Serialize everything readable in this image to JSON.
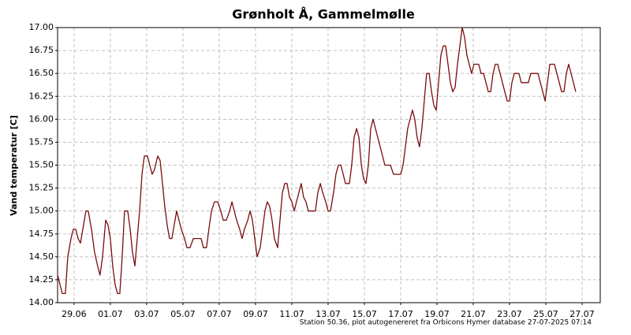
{
  "chart_data": {
    "type": "line",
    "title": "Grønholt Å, Gammelmølle",
    "ylabel": "Vand temperatur [C]",
    "footnote": "Station 50.36, plot autogenereret fra Orbicons Hymer database 27-07-2025 07:14",
    "color": "#7a0c0c",
    "grid": true,
    "xlim": [
      0.09,
      30
    ],
    "ylim": [
      14,
      17
    ],
    "xticks": [
      {
        "value": 1,
        "label": "29.06"
      },
      {
        "value": 3,
        "label": "01.07"
      },
      {
        "value": 5,
        "label": "03.07"
      },
      {
        "value": 7,
        "label": "05.07"
      },
      {
        "value": 9,
        "label": "07.07"
      },
      {
        "value": 11,
        "label": "09.07"
      },
      {
        "value": 13,
        "label": "11.07"
      },
      {
        "value": 15,
        "label": "13.07"
      },
      {
        "value": 17,
        "label": "15.07"
      },
      {
        "value": 19,
        "label": "17.07"
      },
      {
        "value": 21,
        "label": "19.07"
      },
      {
        "value": 23,
        "label": "21.07"
      },
      {
        "value": 25,
        "label": "23.07"
      },
      {
        "value": 27,
        "label": "25.07"
      },
      {
        "value": 29,
        "label": "27.07"
      }
    ],
    "yticks": [
      {
        "value": 14,
        "label": "14.00"
      },
      14.25,
      {
        "value": 14.5,
        "label": "14.50"
      },
      14.75,
      {
        "value": 15,
        "label": "15.00"
      },
      15.25,
      {
        "value": 15.5,
        "label": "15.50"
      },
      15.75,
      {
        "value": 16,
        "label": "16.00"
      },
      16.25,
      {
        "value": 16.5,
        "label": "16.50"
      },
      16.75,
      {
        "value": 17,
        "label": "17.00"
      }
    ],
    "x": [
      0.09,
      0.22,
      0.35,
      0.52,
      0.65,
      0.83,
      0.96,
      1.09,
      1.22,
      1.35,
      1.48,
      1.65,
      1.78,
      1.96,
      2.13,
      2.3,
      2.43,
      2.57,
      2.74,
      2.87,
      3.0,
      3.13,
      3.26,
      3.39,
      3.52,
      3.65,
      3.78,
      3.96,
      4.09,
      4.22,
      4.35,
      4.48,
      4.61,
      4.74,
      4.87,
      5.04,
      5.17,
      5.3,
      5.43,
      5.61,
      5.74,
      5.87,
      6.0,
      6.13,
      6.26,
      6.39,
      6.52,
      6.65,
      6.78,
      6.91,
      7.09,
      7.22,
      7.39,
      7.57,
      7.78,
      8.0,
      8.13,
      8.3,
      8.43,
      8.57,
      8.74,
      8.91,
      9.09,
      9.22,
      9.39,
      9.57,
      9.7,
      9.83,
      9.96,
      10.13,
      10.26,
      10.39,
      10.57,
      10.7,
      10.83,
      10.96,
      11.09,
      11.26,
      11.39,
      11.52,
      11.65,
      11.78,
      11.91,
      12.04,
      12.22,
      12.35,
      12.48,
      12.61,
      12.74,
      12.87,
      13.0,
      13.13,
      13.26,
      13.39,
      13.52,
      13.65,
      13.78,
      13.91,
      14.3,
      14.43,
      14.57,
      14.7,
      14.87,
      15.0,
      15.13,
      15.3,
      15.43,
      15.57,
      15.7,
      15.83,
      15.96,
      16.17,
      16.3,
      16.43,
      16.57,
      16.7,
      16.83,
      16.96,
      17.09,
      17.22,
      17.35,
      17.48,
      17.61,
      17.74,
      17.87,
      18.0,
      18.13,
      18.43,
      18.61,
      19.0,
      19.13,
      19.26,
      19.39,
      19.52,
      19.65,
      19.78,
      19.91,
      20.04,
      20.17,
      20.3,
      20.43,
      20.57,
      20.7,
      20.83,
      20.96,
      21.09,
      21.22,
      21.35,
      21.48,
      21.61,
      21.74,
      21.87,
      22.0,
      22.13,
      22.26,
      22.39,
      22.52,
      22.65,
      22.78,
      22.91,
      23.04,
      23.3,
      23.43,
      23.57,
      23.7,
      23.83,
      23.96,
      24.09,
      24.22,
      24.35,
      24.48,
      24.61,
      24.74,
      24.87,
      25.0,
      25.13,
      25.26,
      25.52,
      25.65,
      26.04,
      26.17,
      26.57,
      26.7,
      26.83,
      26.96,
      27.09,
      27.22,
      27.48,
      27.61,
      27.74,
      27.87,
      28.0,
      28.13,
      28.26,
      28.39,
      28.52,
      28.65
    ],
    "values": [
      14.3,
      14.2,
      14.1,
      14.1,
      14.5,
      14.7,
      14.8,
      14.8,
      14.7,
      14.65,
      14.8,
      15.0,
      15.0,
      14.8,
      14.55,
      14.4,
      14.3,
      14.5,
      14.9,
      14.85,
      14.7,
      14.4,
      14.2,
      14.1,
      14.1,
      14.5,
      15.0,
      15.0,
      14.8,
      14.55,
      14.4,
      14.7,
      15.0,
      15.4,
      15.6,
      15.6,
      15.5,
      15.4,
      15.45,
      15.6,
      15.55,
      15.3,
      15.05,
      14.85,
      14.7,
      14.7,
      14.85,
      15.0,
      14.9,
      14.8,
      14.7,
      14.6,
      14.6,
      14.7,
      14.7,
      14.7,
      14.6,
      14.6,
      14.8,
      15.0,
      15.1,
      15.1,
      15.0,
      14.9,
      14.9,
      15.0,
      15.1,
      15.0,
      14.9,
      14.8,
      14.7,
      14.8,
      14.9,
      15.0,
      14.9,
      14.7,
      14.5,
      14.6,
      14.8,
      15.0,
      15.1,
      15.05,
      14.9,
      14.7,
      14.6,
      14.9,
      15.2,
      15.3,
      15.3,
      15.15,
      15.1,
      15.0,
      15.1,
      15.2,
      15.3,
      15.15,
      15.1,
      15.0,
      15.0,
      15.2,
      15.3,
      15.2,
      15.1,
      15.0,
      15.0,
      15.2,
      15.4,
      15.5,
      15.5,
      15.4,
      15.3,
      15.3,
      15.5,
      15.8,
      15.9,
      15.8,
      15.5,
      15.35,
      15.3,
      15.5,
      15.9,
      16.0,
      15.9,
      15.8,
      15.7,
      15.6,
      15.5,
      15.5,
      15.4,
      15.4,
      15.5,
      15.7,
      15.9,
      16.0,
      16.1,
      16.0,
      15.8,
      15.7,
      15.9,
      16.2,
      16.5,
      16.5,
      16.3,
      16.15,
      16.1,
      16.4,
      16.7,
      16.8,
      16.8,
      16.6,
      16.4,
      16.3,
      16.35,
      16.6,
      16.8,
      17.0,
      16.9,
      16.7,
      16.6,
      16.5,
      16.6,
      16.6,
      16.5,
      16.5,
      16.4,
      16.3,
      16.3,
      16.5,
      16.6,
      16.6,
      16.5,
      16.4,
      16.3,
      16.2,
      16.2,
      16.4,
      16.5,
      16.5,
      16.4,
      16.4,
      16.5,
      16.5,
      16.4,
      16.3,
      16.2,
      16.4,
      16.6,
      16.6,
      16.5,
      16.4,
      16.3,
      16.3,
      16.5,
      16.6,
      16.5,
      16.4,
      16.3
    ]
  }
}
